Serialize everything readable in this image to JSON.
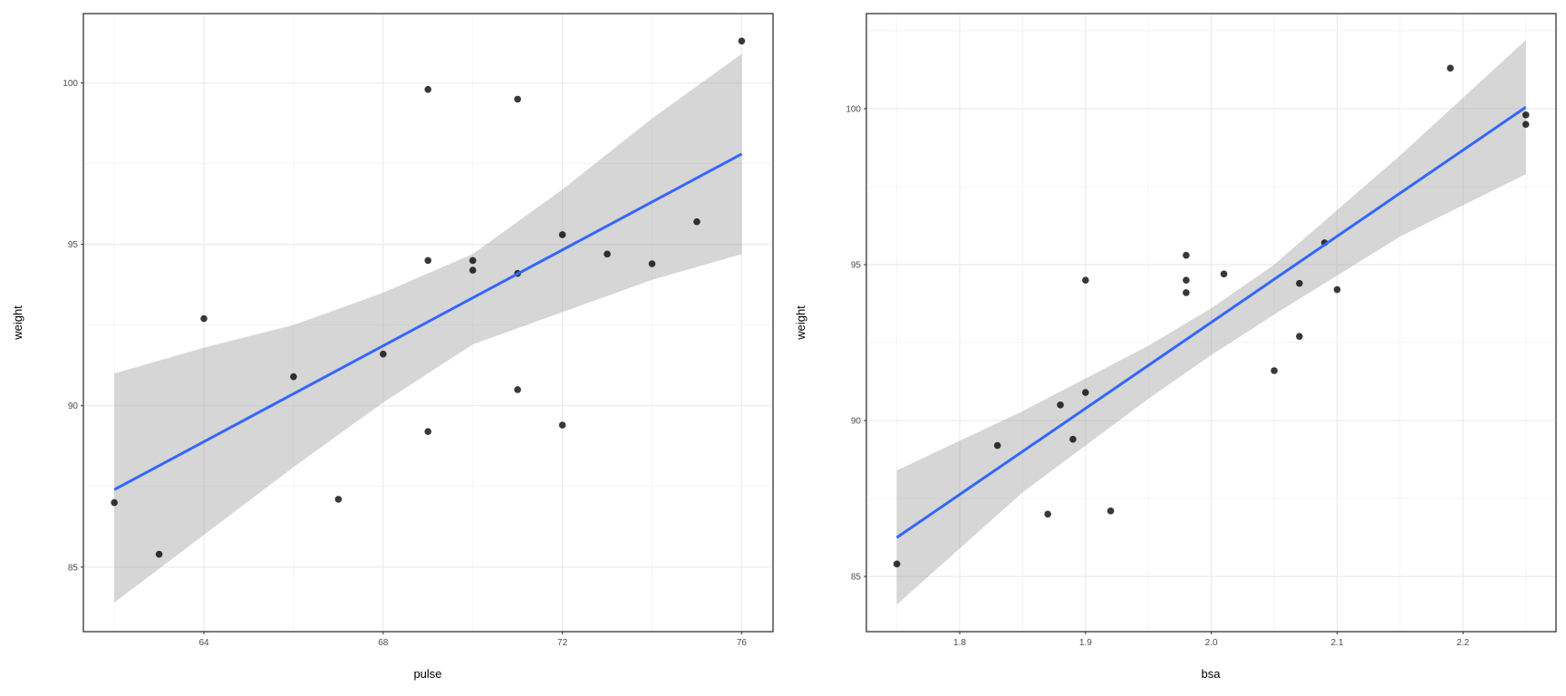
{
  "chart_data": [
    {
      "type": "scatter",
      "title": "",
      "xlabel": "pulse",
      "ylabel": "weight",
      "xlim": [
        61.31,
        76.7
      ],
      "ylim": [
        83.0,
        102.15
      ],
      "xticks": [
        64,
        68,
        72,
        76
      ],
      "xtick_labels": [
        "64",
        "68",
        "72",
        "76"
      ],
      "yticks": [
        85,
        90,
        95,
        100
      ],
      "ytick_labels": [
        "85",
        "90",
        "95",
        "100"
      ],
      "grid": true,
      "points": [
        [
          62,
          87.0
        ],
        [
          63,
          85.4
        ],
        [
          64,
          92.7
        ],
        [
          66,
          90.9
        ],
        [
          67,
          87.1
        ],
        [
          68,
          91.6
        ],
        [
          69,
          99.8
        ],
        [
          69,
          94.5
        ],
        [
          69,
          89.2
        ],
        [
          70,
          94.5
        ],
        [
          70,
          94.2
        ],
        [
          71,
          99.5
        ],
        [
          71,
          94.1
        ],
        [
          71,
          90.5
        ],
        [
          72,
          95.3
        ],
        [
          72,
          89.4
        ],
        [
          73,
          94.7
        ],
        [
          74,
          94.4
        ],
        [
          75,
          95.7
        ],
        [
          76,
          101.3
        ]
      ],
      "fit": {
        "method": "lm",
        "x": [
          62,
          76
        ],
        "y": [
          87.4,
          97.8
        ],
        "color": "#3366FF"
      },
      "ci_band": {
        "x": [
          62,
          64,
          66,
          68,
          70,
          72,
          74,
          76
        ],
        "lower": [
          83.9,
          86.0,
          88.1,
          90.1,
          91.9,
          92.9,
          93.9,
          94.7
        ],
        "upper": [
          91.0,
          91.8,
          92.5,
          93.5,
          94.7,
          96.7,
          98.9,
          100.9
        ]
      }
    },
    {
      "type": "scatter",
      "title": "",
      "xlabel": "bsa",
      "ylabel": "weight",
      "xlim": [
        1.7258,
        2.274
      ],
      "ylim": [
        83.23,
        103.05
      ],
      "xticks": [
        1.8,
        1.9,
        2.0,
        2.1,
        2.2
      ],
      "xtick_labels": [
        "1.8",
        "1.9",
        "2.0",
        "2.1",
        "2.2"
      ],
      "yticks": [
        85,
        90,
        95,
        100
      ],
      "ytick_labels": [
        "85",
        "90",
        "95",
        "100"
      ],
      "grid": true,
      "points": [
        [
          1.75,
          85.4
        ],
        [
          1.83,
          89.2
        ],
        [
          1.87,
          87.0
        ],
        [
          1.88,
          90.5
        ],
        [
          1.89,
          89.4
        ],
        [
          1.9,
          94.5
        ],
        [
          1.9,
          90.9
        ],
        [
          1.92,
          87.1
        ],
        [
          1.98,
          95.3
        ],
        [
          1.98,
          94.5
        ],
        [
          1.98,
          94.1
        ],
        [
          2.01,
          94.7
        ],
        [
          2.05,
          91.6
        ],
        [
          2.07,
          94.4
        ],
        [
          2.07,
          92.7
        ],
        [
          2.09,
          95.7
        ],
        [
          2.1,
          94.2
        ],
        [
          2.19,
          101.3
        ],
        [
          2.25,
          99.8
        ],
        [
          2.25,
          99.5
        ]
      ],
      "fit": {
        "method": "lm",
        "x": [
          1.75,
          2.25
        ],
        "y": [
          86.25,
          100.05
        ],
        "color": "#3366FF"
      },
      "ci_band": {
        "x": [
          1.75,
          1.85,
          1.95,
          2.0,
          2.05,
          2.15,
          2.25
        ],
        "lower": [
          84.1,
          87.7,
          90.7,
          92.1,
          93.4,
          95.9,
          97.9
        ],
        "upper": [
          88.4,
          90.3,
          92.4,
          93.6,
          95.0,
          98.5,
          102.2
        ]
      }
    }
  ]
}
